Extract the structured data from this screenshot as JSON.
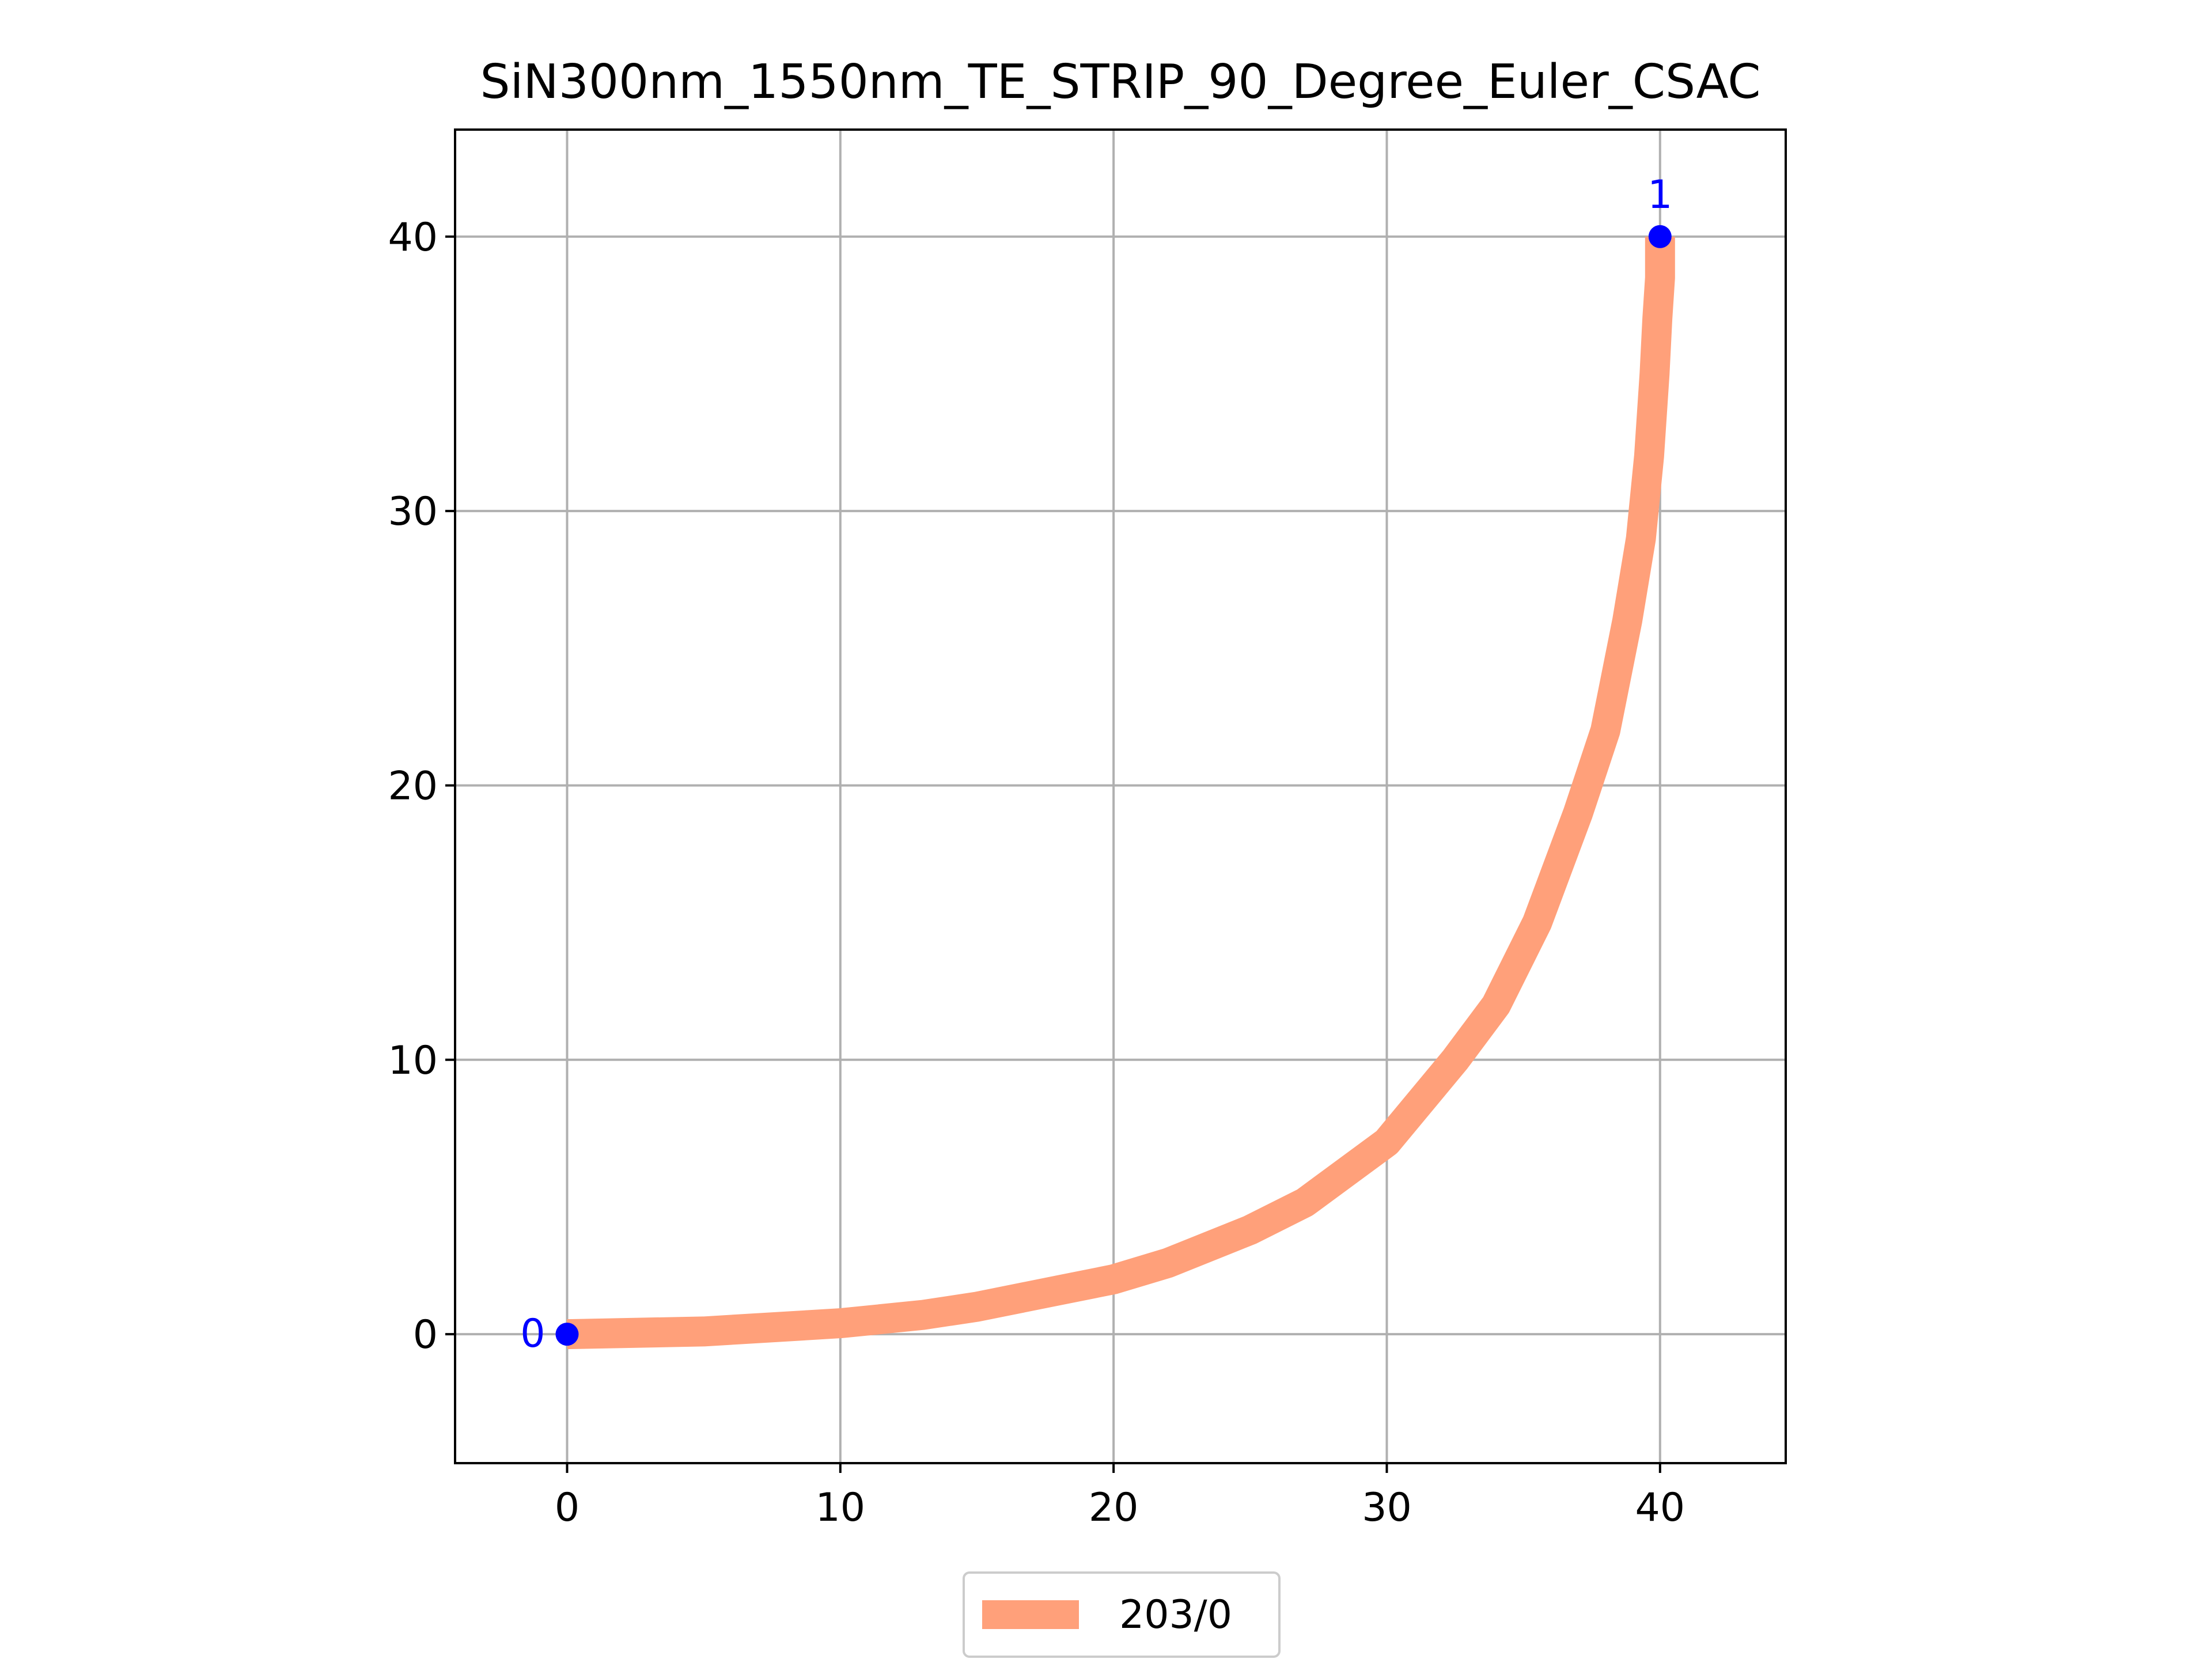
{
  "chart_data": {
    "type": "line",
    "title": "SiN300nm_1550nm_TE_STRIP_90_Degree_Euler_CSAC",
    "xlabel": "",
    "ylabel": "",
    "xlim": [
      -4.1,
      44.6
    ],
    "ylim": [
      -4.7,
      43.9
    ],
    "xticks": [
      0,
      10,
      20,
      30,
      40
    ],
    "yticks": [
      0,
      10,
      20,
      30,
      40
    ],
    "xtick_labels": [
      "0",
      "10",
      "20",
      "30",
      "40"
    ],
    "ytick_labels": [
      "0",
      "10",
      "20",
      "30",
      "40"
    ],
    "grid": true,
    "series": [
      {
        "name": "203/0",
        "color": "#ffa07a",
        "x": [
          0,
          5,
          10,
          13,
          15,
          18,
          20,
          22,
          25,
          27,
          30,
          32.5,
          34,
          35.5,
          37,
          38,
          38.8,
          39.3,
          39.6,
          39.8,
          39.9,
          40,
          40
        ],
        "y": [
          0,
          0.1,
          0.4,
          0.7,
          1.0,
          1.6,
          2.0,
          2.6,
          3.8,
          4.8,
          7.0,
          10.0,
          12.0,
          15.0,
          19.0,
          22.0,
          26.0,
          29.0,
          32.0,
          35.0,
          37.0,
          38.5,
          40
        ]
      }
    ],
    "ports": [
      {
        "label": "0",
        "x": 0,
        "y": 0,
        "color": "#0000ff"
      },
      {
        "label": "1",
        "x": 40,
        "y": 40,
        "color": "#0000ff"
      }
    ],
    "legend": {
      "placement": "bottom-center",
      "entries": [
        "203/0"
      ]
    }
  }
}
